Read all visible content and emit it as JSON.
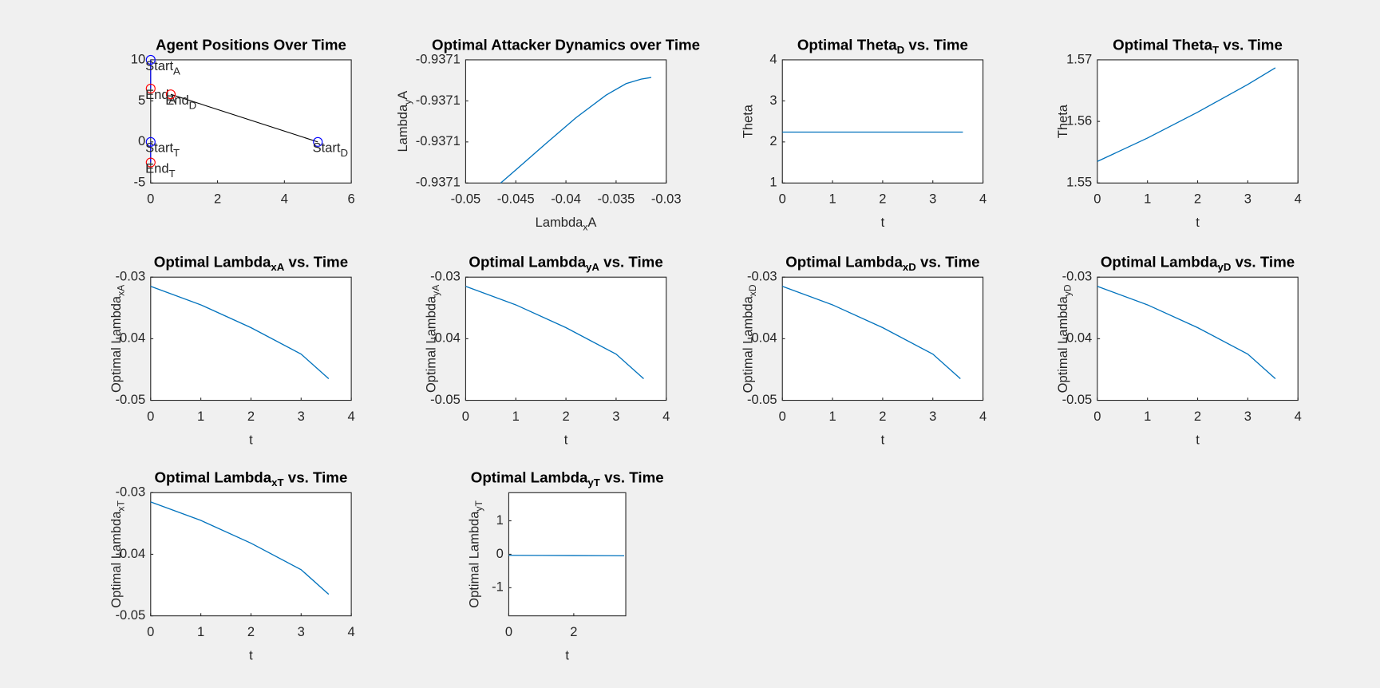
{
  "chart_data": [
    {
      "type": "scatter",
      "title": [
        "Agent Positions Over Time"
      ],
      "xlim": [
        0,
        6
      ],
      "ylim": [
        -5,
        10
      ],
      "xticks": [
        0,
        2,
        4,
        6
      ],
      "yticks": [
        -5,
        0,
        5,
        10
      ],
      "lines": [
        {
          "x": [
            0,
            0
          ],
          "y": [
            10,
            6.5
          ],
          "color": "#0000ff"
        },
        {
          "x": [
            5,
            0.6
          ],
          "y": [
            0,
            5.8
          ],
          "color": "#000000"
        },
        {
          "x": [
            0,
            0
          ],
          "y": [
            0,
            -2.5
          ],
          "color": "#0000ff"
        }
      ],
      "points": [
        {
          "label": [
            "Start",
            "A"
          ],
          "x": 0,
          "y": 10,
          "color": "#0000ff"
        },
        {
          "label": [
            "End",
            "A"
          ],
          "x": 0,
          "y": 6.5,
          "color": "#ff0000"
        },
        {
          "label": [
            "End",
            "D"
          ],
          "x": 0.6,
          "y": 5.8,
          "color": "#ff0000"
        },
        {
          "label": [
            "Start",
            "D"
          ],
          "x": 5,
          "y": 0,
          "color": "#0000ff"
        },
        {
          "label": [
            "Start",
            "T"
          ],
          "x": 0,
          "y": 0,
          "color": "#0000ff"
        },
        {
          "label": [
            "End",
            "T"
          ],
          "x": 0,
          "y": -2.5,
          "color": "#ff0000"
        }
      ]
    },
    {
      "type": "line",
      "title": [
        "Optimal Attacker Dynamics over Time"
      ],
      "xlabel": [
        "Lambda",
        "x",
        "A"
      ],
      "ylabel": [
        "Lambda",
        "y",
        "A"
      ],
      "xlim": [
        -0.05,
        -0.03
      ],
      "xticks": [
        -0.05,
        -0.045,
        -0.04,
        -0.035,
        -0.03
      ],
      "ylim": [
        -0.93712,
        -0.93709
      ],
      "yticks": [
        {
          "value": -0.93712,
          "label": "-0.9371"
        },
        {
          "value": -0.93711,
          "label": "-0.9371"
        },
        {
          "value": -0.9371,
          "label": "-0.9371"
        },
        {
          "value": -0.93709,
          "label": "-0.9371"
        }
      ],
      "x": [
        -0.0465,
        -0.045,
        -0.042,
        -0.039,
        -0.036,
        -0.034,
        -0.0325,
        -0.0315
      ],
      "values": [
        -0.93712,
        -0.9371168,
        -0.9371104,
        -0.9371041,
        -0.9370986,
        -0.9370958,
        -0.9370947,
        -0.9370943
      ],
      "color": "#0072bd"
    },
    {
      "type": "line",
      "title": [
        "Optimal Theta",
        "D",
        " vs. Time"
      ],
      "xlabel": [
        "t"
      ],
      "ylabel": [
        "Theta"
      ],
      "xlim": [
        0,
        4
      ],
      "xticks": [
        0,
        1,
        2,
        3,
        4
      ],
      "ylim": [
        1,
        4
      ],
      "yticks": [
        1,
        2,
        3,
        4
      ],
      "x": [
        0,
        3.6
      ],
      "values": [
        2.24,
        2.24
      ],
      "color": "#0072bd"
    },
    {
      "type": "line",
      "title": [
        "Optimal Theta",
        "T",
        " vs. Time"
      ],
      "xlabel": [
        "t"
      ],
      "ylabel": [
        "Theta"
      ],
      "xlim": [
        0,
        4
      ],
      "xticks": [
        0,
        1,
        2,
        3,
        4
      ],
      "ylim": [
        1.55,
        1.57
      ],
      "yticks": [
        1.55,
        1.56,
        1.57
      ],
      "x": [
        0,
        1,
        2,
        3,
        3.55
      ],
      "values": [
        1.5535,
        1.5573,
        1.5615,
        1.566,
        1.5687
      ],
      "color": "#0072bd"
    },
    {
      "type": "line",
      "title": [
        "Optimal Lambda",
        "xA",
        " vs. Time"
      ],
      "xlabel": [
        "t"
      ],
      "ylabel": [
        "Optimal Lambda",
        "xA"
      ],
      "xlim": [
        0,
        4
      ],
      "xticks": [
        0,
        1,
        2,
        3,
        4
      ],
      "ylim": [
        -0.05,
        -0.03
      ],
      "yticks": [
        -0.05,
        -0.04,
        -0.03
      ],
      "x": [
        0,
        1,
        2,
        3,
        3.55
      ],
      "values": [
        -0.0315,
        -0.0345,
        -0.0382,
        -0.0425,
        -0.0465
      ],
      "color": "#0072bd"
    },
    {
      "type": "line",
      "title": [
        "Optimal Lambda",
        "yA",
        " vs. Time"
      ],
      "xlabel": [
        "t"
      ],
      "ylabel": [
        "Optimal Lambda",
        "yA"
      ],
      "xlim": [
        0,
        4
      ],
      "xticks": [
        0,
        1,
        2,
        3,
        4
      ],
      "ylim": [
        -0.05,
        -0.03
      ],
      "yticks": [
        -0.05,
        -0.04,
        -0.03
      ],
      "x": [
        0,
        1,
        2,
        3,
        3.55
      ],
      "values": [
        -0.0315,
        -0.0345,
        -0.0382,
        -0.0425,
        -0.0465
      ],
      "color": "#0072bd"
    },
    {
      "type": "line",
      "title": [
        "Optimal Lambda",
        "xD",
        " vs. Time"
      ],
      "xlabel": [
        "t"
      ],
      "ylabel": [
        "Optimal Lambda",
        "xD"
      ],
      "xlim": [
        0,
        4
      ],
      "xticks": [
        0,
        1,
        2,
        3,
        4
      ],
      "ylim": [
        -0.05,
        -0.03
      ],
      "yticks": [
        -0.05,
        -0.04,
        -0.03
      ],
      "x": [
        0,
        1,
        2,
        3,
        3.55
      ],
      "values": [
        -0.0315,
        -0.0345,
        -0.0382,
        -0.0425,
        -0.0465
      ],
      "color": "#0072bd"
    },
    {
      "type": "line",
      "title": [
        "Optimal Lambda",
        "yD",
        " vs. Time"
      ],
      "xlabel": [
        "t"
      ],
      "ylabel": [
        "Optimal Lambda",
        "yD"
      ],
      "xlim": [
        0,
        4
      ],
      "xticks": [
        0,
        1,
        2,
        3,
        4
      ],
      "ylim": [
        -0.05,
        -0.03
      ],
      "yticks": [
        -0.05,
        -0.04,
        -0.03
      ],
      "x": [
        0,
        1,
        2,
        3,
        3.55
      ],
      "values": [
        -0.0315,
        -0.0345,
        -0.0382,
        -0.0425,
        -0.0465
      ],
      "color": "#0072bd"
    },
    {
      "type": "line",
      "title": [
        "Optimal Lambda",
        "xT",
        " vs. Time"
      ],
      "xlabel": [
        "t"
      ],
      "ylabel": [
        "Optimal Lambda",
        "xT"
      ],
      "xlim": [
        0,
        4
      ],
      "xticks": [
        0,
        1,
        2,
        3,
        4
      ],
      "ylim": [
        -0.05,
        -0.03
      ],
      "yticks": [
        -0.05,
        -0.04,
        -0.03
      ],
      "x": [
        0,
        1,
        2,
        3,
        3.55
      ],
      "values": [
        -0.0315,
        -0.0345,
        -0.0382,
        -0.0425,
        -0.0465
      ],
      "color": "#0072bd"
    },
    {
      "type": "line",
      "title": [
        "Optimal Lambda",
        "yT",
        " vs. Time"
      ],
      "xlabel": [
        "t"
      ],
      "ylabel": [
        "Optimal Lambda",
        "yT"
      ],
      "xlim": [
        0,
        3.6
      ],
      "xticks": [
        0,
        2
      ],
      "ylim": [
        -1.84,
        1.84
      ],
      "yticks": [
        -1,
        0,
        1
      ],
      "x": [
        0,
        1,
        2,
        3,
        3.55
      ],
      "values": [
        -0.0315,
        -0.0345,
        -0.0382,
        -0.0425,
        -0.0465
      ],
      "color": "#0072bd"
    }
  ]
}
